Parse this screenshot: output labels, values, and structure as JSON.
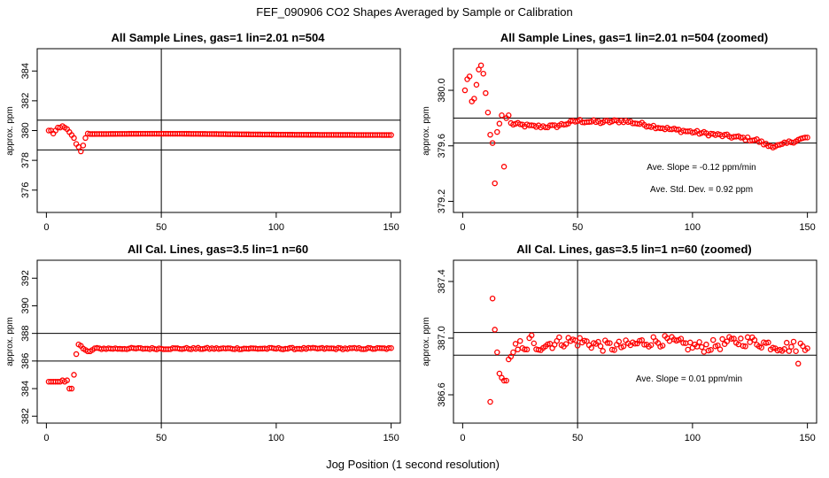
{
  "figure": {
    "title": "FEF_090906  CO2 Shapes Averaged by Sample or Calibration",
    "xlabel": "Jog Position (1 second resolution)",
    "point_color": "#ff0000"
  },
  "chart_data": [
    {
      "type": "scatter",
      "title": "All Sample Lines, gas=1 lin=2.01 n=504",
      "xlabel": "",
      "ylabel": "approx. ppm",
      "xlim": [
        -4,
        154
      ],
      "ylim": [
        374.5,
        385.5
      ],
      "xticks": [
        0,
        50,
        100,
        150
      ],
      "yticks": [
        376,
        378,
        380,
        382,
        384
      ],
      "vline": 50,
      "hlines": [
        380.7,
        378.7
      ],
      "annotations": [],
      "series": [
        {
          "x": [
            1,
            2,
            3,
            4,
            5,
            6,
            7,
            8,
            9,
            10,
            11,
            12,
            13,
            14,
            15,
            16,
            17,
            18,
            "19-150"
          ],
          "y": [
            380.0,
            380.0,
            379.8,
            380.0,
            380.2,
            380.2,
            380.3,
            380.2,
            380.1,
            379.9,
            379.7,
            379.5,
            379.1,
            378.9,
            378.6,
            379.0,
            379.5,
            379.8,
            "flat ~379.75"
          ],
          "explicit": [
            [
              1,
              380.0
            ],
            [
              2,
              380.0
            ],
            [
              3,
              379.8
            ],
            [
              4,
              380.0
            ],
            [
              5,
              380.2
            ],
            [
              6,
              380.2
            ],
            [
              7,
              380.3
            ],
            [
              8,
              380.2
            ],
            [
              9,
              380.1
            ],
            [
              10,
              379.9
            ],
            [
              11,
              379.7
            ],
            [
              12,
              379.5
            ],
            [
              13,
              379.1
            ],
            [
              14,
              378.9
            ],
            [
              15,
              378.6
            ],
            [
              16,
              379.0
            ],
            [
              17,
              379.5
            ],
            [
              18,
              379.8
            ]
          ],
          "tail": {
            "x_start": 19,
            "x_end": 150,
            "level": 379.75,
            "hump_center": 55,
            "hump_height": 0.05,
            "end_level": 379.7
          }
        }
      ]
    },
    {
      "type": "scatter",
      "title": "All Sample Lines, gas=1 lin=2.01 n=504 (zoomed)",
      "xlabel": "",
      "ylabel": "approx. ppm",
      "xlim": [
        -4,
        154
      ],
      "ylim": [
        379.12,
        380.3
      ],
      "xticks": [
        0,
        50,
        100,
        150
      ],
      "yticks": [
        379.2,
        379.6,
        380.0
      ],
      "vline": 50,
      "hlines": [
        379.8,
        379.62
      ],
      "annotations": [
        "Ave. Slope =  -0.12  ppm/min",
        "Ave. Std. Dev. =  0.92  ppm"
      ],
      "series": [
        {
          "explicit": [
            [
              1,
              380.0
            ],
            [
              2,
              380.08
            ],
            [
              3,
              380.1
            ],
            [
              4,
              379.92
            ],
            [
              5,
              379.94
            ],
            [
              6,
              380.04
            ],
            [
              7,
              380.15
            ],
            [
              8,
              380.18
            ],
            [
              9,
              380.12
            ],
            [
              10,
              379.98
            ],
            [
              11,
              379.84
            ],
            [
              12,
              379.68
            ],
            [
              13,
              379.62
            ],
            [
              14,
              379.33
            ],
            [
              15,
              379.7
            ],
            [
              16,
              379.76
            ],
            [
              17,
              379.82
            ],
            [
              18,
              379.45
            ],
            [
              19,
              379.8
            ],
            [
              20,
              379.82
            ]
          ],
          "tail": {
            "x_start": 21,
            "x_end": 150,
            "points": [
              [
                21,
                379.76
              ],
              [
                30,
                379.74
              ],
              [
                40,
                379.74
              ],
              [
                50,
                379.78
              ],
              [
                60,
                379.77
              ],
              [
                70,
                379.78
              ],
              [
                80,
                379.75
              ],
              [
                90,
                379.72
              ],
              [
                100,
                379.7
              ],
              [
                110,
                379.68
              ],
              [
                120,
                379.66
              ],
              [
                128,
                379.64
              ],
              [
                133,
                379.6
              ],
              [
                138,
                379.6
              ],
              [
                143,
                379.63
              ],
              [
                150,
                379.66
              ]
            ]
          }
        }
      ]
    },
    {
      "type": "scatter",
      "title": "All Cal. Lines, gas=3.5 lin=1 n=60",
      "xlabel": "",
      "ylabel": "approx. ppm",
      "xlim": [
        -4,
        154
      ],
      "ylim": [
        381.5,
        393.3
      ],
      "xticks": [
        0,
        50,
        100,
        150
      ],
      "yticks": [
        382,
        384,
        386,
        388,
        390,
        392
      ],
      "vline": 50,
      "hlines": [
        388.0,
        386.0
      ],
      "annotations": [],
      "series": [
        {
          "explicit": [
            [
              1,
              384.5
            ],
            [
              2,
              384.5
            ],
            [
              3,
              384.5
            ],
            [
              4,
              384.5
            ],
            [
              5,
              384.5
            ],
            [
              6,
              384.5
            ],
            [
              7,
              384.6
            ],
            [
              8,
              384.5
            ],
            [
              9,
              384.6
            ],
            [
              10,
              384.0
            ],
            [
              11,
              384.0
            ],
            [
              12,
              385.0
            ],
            [
              13,
              386.5
            ],
            [
              14,
              387.2
            ],
            [
              15,
              387.1
            ],
            [
              16,
              386.9
            ],
            [
              17,
              386.8
            ],
            [
              18,
              386.7
            ],
            [
              19,
              386.7
            ],
            [
              20,
              386.8
            ]
          ],
          "tail": {
            "x_start": 21,
            "x_end": 150,
            "level": 386.9
          }
        }
      ]
    },
    {
      "type": "scatter",
      "title": "All Cal. Lines, gas=3.5 lin=1 n=60 (zoomed)",
      "xlabel": "",
      "ylabel": "approx. ppm",
      "xlim": [
        -4,
        154
      ],
      "ylim": [
        386.4,
        387.55
      ],
      "xticks": [
        0,
        50,
        100,
        150
      ],
      "yticks": [
        386.6,
        387.0,
        387.4
      ],
      "vline": 50,
      "hlines": [
        387.04,
        386.88
      ],
      "annotations": [
        "Ave. Slope =  0.01  ppm/min"
      ],
      "series": [
        {
          "explicit": [
            [
              12,
              386.55
            ],
            [
              13,
              387.28
            ],
            [
              14,
              387.06
            ],
            [
              15,
              386.9
            ],
            [
              16,
              386.75
            ],
            [
              17,
              386.72
            ],
            [
              18,
              386.7
            ],
            [
              19,
              386.7
            ],
            [
              20,
              386.85
            ],
            [
              21,
              386.87
            ],
            [
              22,
              386.9
            ],
            [
              23,
              386.96
            ],
            [
              24,
              386.92
            ],
            [
              25,
              386.98
            ],
            [
              26,
              386.93
            ],
            [
              27,
              386.92
            ],
            [
              28,
              386.92
            ],
            [
              29,
              387.0
            ],
            [
              30,
              387.02
            ]
          ],
          "tail": {
            "x_start": 31,
            "x_end": 150,
            "level": 386.96,
            "amp": 0.04
          }
        }
      ]
    }
  ]
}
